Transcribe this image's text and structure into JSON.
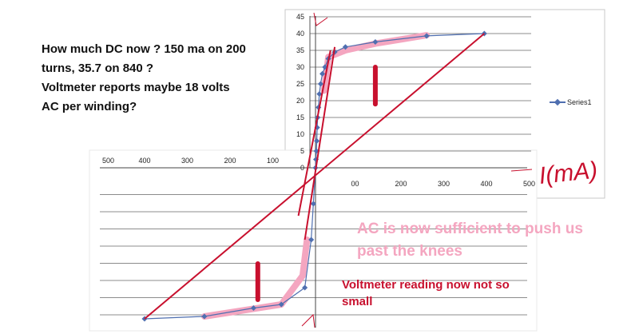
{
  "question": {
    "lines": [
      "How much DC now ?  150 ma on 200",
      "turns,  35.7 on 840 ?",
      "Voltmeter reports maybe 18 volts",
      "AC per winding?"
    ]
  },
  "annotations": {
    "pink_line1": "AC is now sufficient to push us",
    "pink_line2": "past  the knees",
    "red_line1": "Voltmeter reading now not so",
    "red_line2": "small",
    "x_axis_handwritten": "I(mA)"
  },
  "colors": {
    "series": "#4f6fb0",
    "red_annotation": "#c8102e",
    "pink_annotation": "#f4a6c0",
    "grid": "#8c8c8c"
  },
  "chart_data": {
    "type": "scatter",
    "series": [
      {
        "name": "Series1",
        "points": [
          [
            0,
            0
          ],
          [
            1,
            2.5
          ],
          [
            2,
            5
          ],
          [
            3,
            8
          ],
          [
            4,
            12
          ],
          [
            5,
            15
          ],
          [
            7,
            18
          ],
          [
            9,
            22
          ],
          [
            12,
            25
          ],
          [
            16,
            28
          ],
          [
            22,
            30
          ],
          [
            30,
            32.5
          ],
          [
            45,
            34.5
          ],
          [
            70,
            36
          ],
          [
            140,
            37.5
          ],
          [
            260,
            39.3
          ],
          [
            395,
            40
          ]
        ],
        "mirrored_points": [
          [
            -5,
            -15
          ],
          [
            -10,
            -30
          ],
          [
            -25,
            -50
          ],
          [
            -80,
            -57
          ],
          [
            -145,
            -58.5
          ],
          [
            -260,
            -62
          ],
          [
            -400,
            -63
          ]
        ]
      }
    ],
    "x_ticks_top": [
      "500",
      "400",
      "300",
      "200",
      "100"
    ],
    "x_ticks_bottom": [
      "00",
      "200",
      "300",
      "400",
      "500"
    ],
    "y_ticks": [
      "0",
      "5",
      "10",
      "15",
      "20",
      "25",
      "30",
      "35",
      "40",
      "45"
    ],
    "xlim": [
      -500,
      500
    ],
    "ylim": [
      0,
      45
    ],
    "legend": "right",
    "grid": true,
    "red_line": [
      [
        -400,
        -63
      ],
      [
        395,
        40
      ]
    ],
    "red_lines_steep": [
      [
        [
          -40,
          -20
        ],
        [
          35,
          35
        ]
      ],
      [
        [
          -25,
          -30
        ],
        [
          45,
          36
        ]
      ]
    ],
    "pink_path_top": [
      [
        20,
        23
      ],
      [
        30,
        33
      ],
      [
        70,
        35
      ],
      [
        140,
        37
      ],
      [
        260,
        39.5
      ]
    ],
    "pink_path_bottom": [
      [
        -20,
        -30
      ],
      [
        -30,
        -45
      ],
      [
        -80,
        -57
      ],
      [
        -260,
        -62
      ]
    ],
    "red_bars": [
      [
        140,
        30,
        19
      ],
      [
        -135,
        -55,
        -40
      ]
    ]
  }
}
